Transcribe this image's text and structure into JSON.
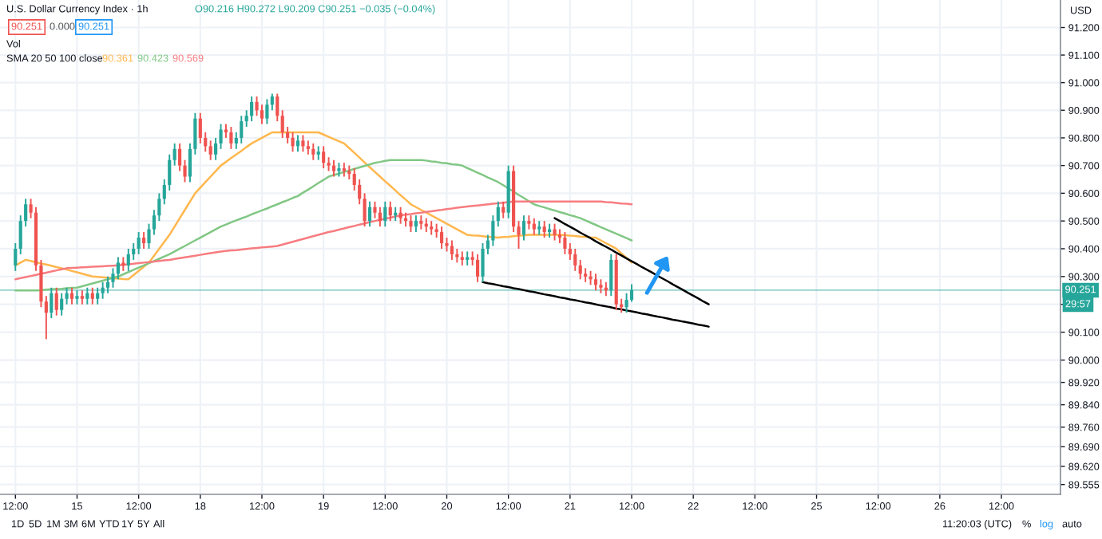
{
  "chart_data": {
    "type": "candlestick",
    "title": "U.S. Dollar Currency Index · 1h",
    "categories": [
      "12:00",
      null,
      null,
      null,
      null,
      null,
      null,
      null,
      null,
      null,
      null,
      null,
      "15",
      null,
      null,
      null,
      null,
      null,
      null,
      null,
      null,
      null,
      null,
      null,
      "12:00",
      null,
      null,
      null,
      null,
      null,
      null,
      null,
      null,
      null,
      null,
      null,
      "18",
      null,
      null,
      null,
      null,
      null,
      null,
      null,
      null,
      null,
      null,
      null,
      "12:00",
      null,
      null,
      null,
      null,
      null,
      null,
      null,
      null,
      null,
      null,
      null,
      "19",
      null,
      null,
      null,
      null,
      null,
      null,
      null,
      null,
      null,
      null,
      null,
      "12:00",
      null,
      null,
      null,
      null,
      null,
      null,
      null,
      null,
      null,
      null,
      null,
      "20",
      null,
      null,
      null,
      null,
      null,
      null,
      null,
      null,
      null,
      null,
      null,
      "12:00",
      null,
      null,
      null,
      null,
      null,
      null,
      null,
      null,
      null,
      null,
      null,
      "21",
      null,
      null,
      null,
      null,
      null,
      null,
      null,
      null,
      null,
      null,
      null,
      "12:00",
      null,
      null,
      null,
      null,
      null,
      null,
      null,
      null,
      null,
      null,
      null,
      "22",
      null,
      null,
      null,
      null,
      null,
      null,
      null,
      null,
      null,
      null,
      null,
      "12:00",
      null,
      null,
      null,
      null,
      null,
      null,
      null,
      null,
      null,
      null,
      null,
      "25",
      null,
      null,
      null,
      null,
      null,
      null,
      null,
      null,
      null,
      null,
      null,
      "12:00",
      null,
      null,
      null,
      null,
      null,
      null,
      null,
      null,
      null,
      null,
      null,
      "26",
      null,
      null,
      null,
      null,
      null,
      null,
      null,
      null,
      null,
      null,
      null,
      "12:00",
      null,
      null,
      null,
      null,
      null,
      null,
      null,
      null,
      null,
      null,
      null
    ],
    "ohlc": [
      [
        90.34,
        90.42,
        90.32,
        90.4
      ],
      [
        90.4,
        90.52,
        90.38,
        90.5
      ],
      [
        90.5,
        90.58,
        90.48,
        90.56
      ],
      [
        90.56,
        90.58,
        90.51,
        90.53
      ],
      [
        90.53,
        90.55,
        90.32,
        90.34
      ],
      [
        90.34,
        90.36,
        90.19,
        90.21
      ],
      [
        90.21,
        90.23,
        90.075,
        90.17
      ],
      [
        90.17,
        90.26,
        90.15,
        90.24
      ],
      [
        90.24,
        90.26,
        90.16,
        90.18
      ],
      [
        90.18,
        90.24,
        90.16,
        90.22
      ],
      [
        90.22,
        90.26,
        90.2,
        90.24
      ],
      [
        90.24,
        90.26,
        90.2,
        90.22
      ],
      [
        90.22,
        90.25,
        90.2,
        90.23
      ],
      [
        90.23,
        90.25,
        90.2,
        90.22
      ],
      [
        90.22,
        90.26,
        90.2,
        90.24
      ],
      [
        90.24,
        90.26,
        90.2,
        90.22
      ],
      [
        90.22,
        90.26,
        90.2,
        90.24
      ],
      [
        90.24,
        90.28,
        90.22,
        90.26
      ],
      [
        90.26,
        90.3,
        90.24,
        90.28
      ],
      [
        90.28,
        90.33,
        90.26,
        90.31
      ],
      [
        90.31,
        90.37,
        90.29,
        90.35
      ],
      [
        90.35,
        90.37,
        90.32,
        90.34
      ],
      [
        90.34,
        90.4,
        90.32,
        90.38
      ],
      [
        90.38,
        90.42,
        90.36,
        90.4
      ],
      [
        90.4,
        90.46,
        90.38,
        90.44
      ],
      [
        90.44,
        90.46,
        90.4,
        90.42
      ],
      [
        90.42,
        90.49,
        90.4,
        90.47
      ],
      [
        90.47,
        90.54,
        90.45,
        90.52
      ],
      [
        90.52,
        90.6,
        90.5,
        90.58
      ],
      [
        90.58,
        90.65,
        90.56,
        90.63
      ],
      [
        90.63,
        90.74,
        90.61,
        90.72
      ],
      [
        90.72,
        90.78,
        90.7,
        90.76
      ],
      [
        90.76,
        90.78,
        90.68,
        90.7
      ],
      [
        90.7,
        90.72,
        90.64,
        90.66
      ],
      [
        90.66,
        90.78,
        90.64,
        90.76
      ],
      [
        90.76,
        90.89,
        90.74,
        90.87
      ],
      [
        90.87,
        90.89,
        90.78,
        90.8
      ],
      [
        90.8,
        90.82,
        90.75,
        90.77
      ],
      [
        90.77,
        90.79,
        90.72,
        90.74
      ],
      [
        90.74,
        90.8,
        90.72,
        90.78
      ],
      [
        90.78,
        90.85,
        90.76,
        90.83
      ],
      [
        90.83,
        90.85,
        90.8,
        90.82
      ],
      [
        90.82,
        90.84,
        90.76,
        90.78
      ],
      [
        90.78,
        90.82,
        90.76,
        90.8
      ],
      [
        90.8,
        90.88,
        90.78,
        90.86
      ],
      [
        90.86,
        90.9,
        90.84,
        90.88
      ],
      [
        90.88,
        90.95,
        90.86,
        90.93
      ],
      [
        90.93,
        90.95,
        90.88,
        90.9
      ],
      [
        90.9,
        90.92,
        90.85,
        90.87
      ],
      [
        90.87,
        90.94,
        90.85,
        90.92
      ],
      [
        90.92,
        90.96,
        90.9,
        90.95
      ],
      [
        90.95,
        90.96,
        90.86,
        90.88
      ],
      [
        90.88,
        90.9,
        90.8,
        90.82
      ],
      [
        90.82,
        90.84,
        90.78,
        90.8
      ],
      [
        90.8,
        90.82,
        90.75,
        90.77
      ],
      [
        90.77,
        90.81,
        90.75,
        90.79
      ],
      [
        90.79,
        90.81,
        90.75,
        90.77
      ],
      [
        90.77,
        90.79,
        90.74,
        90.76
      ],
      [
        90.76,
        90.78,
        90.72,
        90.74
      ],
      [
        90.74,
        90.77,
        90.72,
        90.75
      ],
      [
        90.75,
        90.77,
        90.69,
        90.71
      ],
      [
        90.71,
        90.73,
        90.68,
        90.7
      ],
      [
        90.7,
        90.72,
        90.66,
        90.68
      ],
      [
        90.68,
        90.71,
        90.66,
        90.69
      ],
      [
        90.69,
        90.71,
        90.66,
        90.68
      ],
      [
        90.68,
        90.7,
        90.65,
        90.67
      ],
      [
        90.67,
        90.69,
        90.61,
        90.63
      ],
      [
        90.63,
        90.65,
        90.56,
        90.58
      ],
      [
        90.58,
        90.6,
        90.48,
        90.5
      ],
      [
        90.5,
        90.57,
        90.48,
        90.55
      ],
      [
        90.55,
        90.57,
        90.51,
        90.53
      ],
      [
        90.53,
        90.55,
        90.48,
        90.5
      ],
      [
        90.5,
        90.57,
        90.48,
        90.55
      ],
      [
        90.55,
        90.57,
        90.5,
        90.52
      ],
      [
        90.52,
        90.55,
        90.5,
        90.53
      ],
      [
        90.53,
        90.55,
        90.49,
        90.51
      ],
      [
        90.51,
        90.53,
        90.48,
        90.5
      ],
      [
        90.5,
        90.52,
        90.46,
        90.48
      ],
      [
        90.48,
        90.52,
        90.46,
        90.5
      ],
      [
        90.5,
        90.52,
        90.47,
        90.49
      ],
      [
        90.49,
        90.51,
        90.46,
        90.48
      ],
      [
        90.48,
        90.5,
        90.45,
        90.47
      ],
      [
        90.47,
        90.49,
        90.44,
        90.46
      ],
      [
        90.46,
        90.48,
        90.4,
        90.42
      ],
      [
        90.42,
        90.44,
        90.39,
        90.41
      ],
      [
        90.41,
        90.43,
        90.36,
        90.38
      ],
      [
        90.38,
        90.4,
        90.35,
        90.37
      ],
      [
        90.37,
        90.39,
        90.34,
        90.36
      ],
      [
        90.36,
        90.39,
        90.34,
        90.37
      ],
      [
        90.37,
        90.39,
        90.34,
        90.36
      ],
      [
        90.36,
        90.38,
        90.28,
        90.3
      ],
      [
        90.3,
        90.42,
        90.28,
        90.4
      ],
      [
        90.4,
        90.45,
        90.38,
        90.43
      ],
      [
        90.43,
        90.52,
        90.41,
        90.5
      ],
      [
        90.5,
        90.57,
        90.48,
        90.55
      ],
      [
        90.55,
        90.57,
        90.51,
        90.53
      ],
      [
        90.53,
        90.7,
        90.51,
        90.68
      ],
      [
        90.68,
        90.7,
        90.46,
        90.48
      ],
      [
        90.48,
        90.5,
        90.4,
        90.45
      ],
      [
        90.45,
        90.52,
        90.43,
        90.5
      ],
      [
        90.5,
        90.52,
        90.47,
        90.49
      ],
      [
        90.49,
        90.51,
        90.45,
        90.47
      ],
      [
        90.47,
        90.5,
        90.45,
        90.48
      ],
      [
        90.48,
        90.5,
        90.44,
        90.46
      ],
      [
        90.46,
        90.49,
        90.44,
        90.47
      ],
      [
        90.47,
        90.49,
        90.43,
        90.45
      ],
      [
        90.45,
        90.47,
        90.42,
        90.44
      ],
      [
        90.44,
        90.46,
        90.38,
        90.4
      ],
      [
        90.4,
        90.42,
        90.36,
        90.38
      ],
      [
        90.38,
        90.4,
        90.32,
        90.34
      ],
      [
        90.34,
        90.36,
        90.29,
        90.31
      ],
      [
        90.31,
        90.33,
        90.28,
        90.3
      ],
      [
        90.3,
        90.32,
        90.27,
        90.29
      ],
      [
        90.29,
        90.31,
        90.25,
        90.27
      ],
      [
        90.27,
        90.29,
        90.24,
        90.26
      ],
      [
        90.26,
        90.28,
        90.23,
        90.25
      ],
      [
        90.25,
        90.38,
        90.23,
        90.36
      ],
      [
        90.36,
        90.38,
        90.18,
        90.2
      ],
      [
        90.2,
        90.22,
        90.17,
        90.19
      ],
      [
        90.19,
        90.24,
        90.17,
        90.216
      ],
      [
        90.216,
        90.272,
        90.209,
        90.251
      ],
      null,
      null,
      null,
      null,
      null,
      null,
      null,
      null,
      null,
      null,
      null,
      null,
      null,
      null,
      null,
      null,
      null,
      null,
      null,
      null,
      null,
      null,
      null,
      null,
      null,
      null,
      null,
      null,
      null,
      null,
      null,
      null,
      null,
      null,
      null,
      null,
      null,
      null,
      null,
      null,
      null,
      null,
      null,
      null,
      null,
      null,
      null,
      null,
      null,
      null,
      null,
      null,
      null,
      null,
      null,
      null,
      null,
      null,
      null,
      null,
      null,
      null,
      null,
      null,
      null,
      null,
      null,
      null,
      null,
      null,
      null,
      null,
      null,
      null,
      null,
      null,
      null,
      null,
      null,
      null,
      null,
      null,
      null
    ],
    "colors": [
      "#26a69a",
      "#26a69a",
      "#26a69a",
      "#ef5350",
      "#ef5350",
      "#ef5350",
      "#ef5350",
      "#26a69a",
      "#ef5350",
      "#26a69a",
      "#26a69a",
      "#ef5350",
      "#26a69a",
      "#ef5350",
      "#26a69a",
      "#ef5350",
      "#26a69a",
      "#26a69a",
      "#26a69a",
      "#26a69a",
      "#26a69a",
      "#ef5350",
      "#26a69a",
      "#26a69a",
      "#26a69a",
      "#ef5350",
      "#26a69a",
      "#26a69a",
      "#26a69a",
      "#26a69a",
      "#26a69a",
      "#26a69a",
      "#ef5350",
      "#ef5350",
      "#26a69a",
      "#26a69a",
      "#ef5350",
      "#ef5350",
      "#ef5350",
      "#26a69a",
      "#26a69a",
      "#ef5350",
      "#ef5350",
      "#26a69a",
      "#26a69a",
      "#26a69a",
      "#26a69a",
      "#ef5350",
      "#ef5350",
      "#26a69a",
      "#26a69a",
      "#ef5350",
      "#ef5350",
      "#ef5350",
      "#ef5350",
      "#26a69a",
      "#ef5350",
      "#ef5350",
      "#ef5350",
      "#26a69a",
      "#ef5350",
      "#ef5350",
      "#ef5350",
      "#26a69a",
      "#ef5350",
      "#ef5350",
      "#ef5350",
      "#ef5350",
      "#ef5350",
      "#26a69a",
      "#ef5350",
      "#ef5350",
      "#26a69a",
      "#ef5350",
      "#26a69a",
      "#ef5350",
      "#ef5350",
      "#ef5350",
      "#26a69a",
      "#ef5350",
      "#ef5350",
      "#ef5350",
      "#ef5350",
      "#ef5350",
      "#ef5350",
      "#ef5350",
      "#ef5350",
      "#ef5350",
      "#26a69a",
      "#ef5350",
      "#ef5350",
      "#26a69a",
      "#26a69a",
      "#26a69a",
      "#26a69a",
      "#ef5350",
      "#26a69a",
      "#ef5350",
      "#ef5350",
      "#26a69a",
      "#ef5350",
      "#ef5350",
      "#26a69a",
      "#ef5350",
      "#26a69a",
      "#ef5350",
      "#ef5350",
      "#ef5350",
      "#ef5350",
      "#ef5350",
      "#ef5350",
      "#ef5350",
      "#ef5350",
      "#ef5350",
      "#ef5350",
      "#ef5350",
      "#26a69a",
      "#ef5350",
      "#ef5350",
      "#26a69a",
      "#26a69a",
      null,
      null,
      null,
      null,
      null,
      null,
      null,
      null,
      null,
      null,
      null,
      null,
      null,
      null,
      null,
      null,
      null,
      null,
      null,
      null,
      null,
      null,
      null,
      null,
      null,
      null,
      null,
      null,
      null,
      null,
      null,
      null,
      null,
      null,
      null,
      null,
      null,
      null,
      null,
      null,
      null,
      null,
      null,
      null,
      null,
      null,
      null,
      null,
      null,
      null,
      null,
      null,
      null,
      null,
      null,
      null,
      null,
      null,
      null,
      null,
      null,
      null,
      null,
      null,
      null,
      null,
      null,
      null,
      null,
      null,
      null,
      null,
      null,
      null,
      null,
      null,
      null,
      null,
      null,
      null,
      null,
      null,
      null
    ],
    "series": [
      {
        "type": "line",
        "name": "90.361",
        "color": "#ffb74d",
        "values": [
          90.34,
          90.35,
          90.36,
          90.356,
          90.351,
          90.347,
          90.343,
          90.339,
          90.334,
          90.33,
          90.325,
          90.32,
          90.315,
          90.31,
          90.305,
          90.3,
          90.299,
          90.297,
          90.296,
          90.294,
          90.293,
          90.291,
          90.29,
          90.305,
          90.32,
          90.335,
          90.35,
          90.375,
          90.4,
          90.425,
          90.45,
          90.48,
          90.51,
          90.54,
          90.57,
          90.6,
          90.62,
          90.64,
          90.66,
          90.68,
          90.7,
          90.713,
          90.727,
          90.74,
          90.753,
          90.767,
          90.78,
          90.79,
          90.8,
          90.81,
          90.82,
          90.82,
          90.82,
          90.82,
          90.82,
          90.82,
          90.82,
          90.82,
          90.82,
          90.82,
          90.812,
          90.804,
          90.796,
          90.788,
          90.78,
          90.763,
          90.746,
          90.729,
          90.711,
          90.694,
          90.677,
          90.66,
          90.643,
          90.627,
          90.61,
          90.593,
          90.577,
          90.56,
          90.55,
          90.54,
          90.53,
          90.52,
          90.51,
          90.5,
          90.49,
          90.48,
          90.47,
          90.46,
          90.45,
          90.448,
          90.447,
          90.445,
          90.443,
          90.442,
          90.44,
          90.442,
          90.443,
          90.445,
          90.447,
          90.448,
          90.45,
          90.45,
          90.45,
          90.45,
          90.45,
          90.45,
          90.45,
          90.449,
          90.447,
          90.446,
          90.444,
          90.443,
          90.441,
          90.44,
          90.43,
          90.42,
          90.41,
          90.4,
          90.383,
          90.367,
          90.35,
          null,
          null,
          null,
          null,
          null,
          null,
          null,
          null,
          null,
          null,
          null,
          null,
          null,
          null,
          null,
          null,
          null,
          null,
          null,
          null,
          null,
          null,
          null,
          null,
          null,
          null,
          null,
          null,
          null,
          null,
          null,
          null,
          null,
          null,
          null,
          null,
          null,
          null,
          null,
          null,
          null,
          null,
          null,
          null,
          null,
          null,
          null,
          null,
          null,
          null,
          null,
          null,
          null,
          null,
          null,
          null,
          null,
          null,
          null,
          null,
          null,
          null,
          null,
          null,
          null,
          null,
          null,
          null,
          null,
          null,
          null,
          null,
          null,
          null,
          null,
          null,
          null,
          null,
          null,
          null,
          null,
          null,
          null
        ]
      },
      {
        "type": "line",
        "name": "90.423",
        "color": "#81c784",
        "values": [
          90.25,
          90.25,
          90.25,
          90.25,
          90.25,
          90.251,
          90.253,
          90.254,
          90.255,
          90.256,
          90.258,
          90.259,
          90.26,
          90.265,
          90.27,
          90.275,
          90.28,
          90.285,
          90.29,
          90.295,
          90.3,
          90.308,
          90.316,
          90.324,
          90.332,
          90.34,
          90.348,
          90.356,
          90.364,
          90.372,
          90.38,
          90.39,
          90.4,
          90.41,
          90.42,
          90.43,
          90.44,
          90.45,
          90.46,
          90.47,
          90.48,
          90.487,
          90.495,
          90.502,
          90.509,
          90.516,
          90.524,
          90.531,
          90.538,
          90.545,
          90.553,
          90.56,
          90.568,
          90.575,
          90.583,
          90.59,
          90.602,
          90.613,
          90.625,
          90.637,
          90.648,
          90.66,
          90.666,
          90.671,
          90.677,
          90.682,
          90.688,
          90.693,
          90.699,
          90.704,
          90.71,
          90.713,
          90.717,
          90.72,
          90.72,
          90.72,
          90.72,
          90.72,
          90.72,
          90.72,
          90.718,
          90.715,
          90.713,
          90.71,
          90.708,
          90.705,
          90.703,
          90.7,
          90.691,
          90.683,
          90.674,
          90.666,
          90.657,
          90.649,
          90.64,
          90.629,
          90.617,
          90.606,
          90.594,
          90.583,
          90.571,
          90.56,
          90.554,
          90.549,
          90.543,
          90.538,
          90.532,
          90.527,
          90.521,
          90.516,
          90.51,
          90.502,
          90.494,
          90.486,
          90.478,
          90.47,
          90.462,
          90.454,
          90.446,
          90.438,
          90.43,
          null,
          null,
          null,
          null,
          null,
          null,
          null,
          null,
          null,
          null,
          null,
          null,
          null,
          null,
          null,
          null,
          null,
          null,
          null,
          null,
          null,
          null,
          null,
          null,
          null,
          null,
          null,
          null,
          null,
          null,
          null,
          null,
          null,
          null,
          null,
          null,
          null,
          null,
          null,
          null,
          null,
          null,
          null,
          null,
          null,
          null,
          null,
          null,
          null,
          null,
          null,
          null,
          null,
          null,
          null,
          null,
          null,
          null,
          null,
          null,
          null,
          null,
          null,
          null,
          null,
          null,
          null,
          null,
          null,
          null,
          null,
          null,
          null,
          null,
          null,
          null,
          null,
          null,
          null,
          null,
          null,
          null,
          null
        ]
      },
      {
        "type": "line",
        "name": "90.569",
        "color": "#f77c80",
        "values": [
          90.29,
          90.294,
          90.298,
          90.302,
          90.306,
          90.31,
          90.314,
          90.318,
          90.322,
          90.326,
          90.33,
          90.331,
          90.332,
          90.333,
          90.334,
          90.335,
          90.336,
          90.337,
          90.338,
          90.339,
          90.34,
          90.342,
          90.344,
          90.346,
          90.348,
          90.35,
          90.352,
          90.354,
          90.356,
          90.358,
          90.36,
          90.363,
          90.366,
          90.369,
          90.372,
          90.375,
          90.378,
          90.381,
          90.384,
          90.387,
          90.39,
          90.392,
          90.394,
          90.395,
          90.397,
          90.399,
          90.401,
          90.403,
          90.405,
          90.406,
          90.408,
          90.41,
          90.415,
          90.42,
          90.425,
          90.43,
          90.435,
          90.44,
          90.445,
          90.45,
          90.455,
          90.46,
          90.464,
          90.469,
          90.473,
          90.478,
          90.482,
          90.487,
          90.491,
          90.496,
          90.5,
          90.504,
          90.508,
          90.512,
          90.516,
          90.52,
          90.523,
          90.525,
          90.528,
          90.53,
          90.533,
          90.535,
          90.538,
          90.54,
          90.543,
          90.545,
          90.548,
          90.55,
          90.552,
          90.554,
          90.556,
          90.558,
          90.56,
          90.562,
          90.564,
          90.566,
          90.568,
          90.57,
          90.57,
          90.57,
          90.57,
          90.57,
          90.57,
          90.57,
          90.57,
          90.57,
          90.57,
          90.57,
          90.57,
          90.57,
          90.57,
          90.57,
          90.57,
          90.57,
          90.57,
          90.568,
          90.567,
          90.565,
          90.563,
          90.562,
          90.56,
          null,
          null,
          null,
          null,
          null,
          null,
          null,
          null,
          null,
          null,
          null,
          null,
          null,
          null,
          null,
          null,
          null,
          null,
          null,
          null,
          null,
          null,
          null,
          null,
          null,
          null,
          null,
          null,
          null,
          null,
          null,
          null,
          null,
          null,
          null,
          null,
          null,
          null,
          null,
          null,
          null,
          null,
          null,
          null,
          null,
          null,
          null,
          null,
          null,
          null,
          null,
          null,
          null,
          null,
          null,
          null,
          null,
          null,
          null,
          null,
          null,
          null,
          null,
          null,
          null,
          null,
          null,
          null,
          null,
          null,
          null,
          null,
          null,
          null,
          null,
          null,
          null,
          null,
          null,
          null,
          null,
          null,
          null
        ]
      },
      {
        "type": "line",
        "color": "#000000",
        "values": [
          null,
          null,
          null,
          null,
          null,
          null,
          null,
          null,
          null,
          null,
          null,
          null,
          null,
          null,
          null,
          null,
          null,
          null,
          null,
          null,
          null,
          null,
          null,
          null,
          null,
          null,
          null,
          null,
          null,
          null,
          null,
          null,
          null,
          null,
          null,
          null,
          null,
          null,
          null,
          null,
          null,
          null,
          null,
          null,
          null,
          null,
          null,
          null,
          null,
          null,
          null,
          null,
          null,
          null,
          null,
          null,
          null,
          null,
          null,
          null,
          null,
          null,
          null,
          null,
          null,
          null,
          null,
          null,
          null,
          null,
          null,
          null,
          null,
          null,
          null,
          null,
          null,
          null,
          null,
          null,
          null,
          null,
          null,
          null,
          null,
          null,
          null,
          null,
          null,
          null,
          null,
          null,
          null,
          null,
          null,
          null,
          null,
          null,
          null,
          null,
          null,
          null,
          null,
          null,
          null,
          90.51,
          90.5,
          90.489,
          90.479,
          90.469,
          90.458,
          90.448,
          90.438,
          90.427,
          90.417,
          90.407,
          90.397,
          90.386,
          90.376,
          90.365,
          90.355,
          90.345,
          90.334,
          90.324,
          90.314,
          90.303,
          90.293,
          90.283,
          90.272,
          90.262,
          90.252,
          90.241,
          90.231,
          90.221,
          90.21,
          90.2,
          null,
          null,
          null,
          null,
          null,
          null,
          null,
          null,
          null,
          null,
          null,
          null,
          null,
          null,
          null,
          null,
          null,
          null,
          null,
          null,
          null,
          null,
          null,
          null,
          null,
          null,
          null,
          null,
          null,
          null,
          null,
          null,
          null,
          null,
          null,
          null,
          null,
          null,
          null,
          null,
          null,
          null,
          null,
          null,
          null,
          null,
          null,
          null,
          null,
          null,
          null,
          null,
          null,
          null,
          null,
          null,
          null,
          null,
          null,
          null,
          null,
          null,
          null,
          null,
          null,
          null,
          null,
          null
        ]
      },
      {
        "type": "line",
        "color": "#000000",
        "values": [
          null,
          null,
          null,
          null,
          null,
          null,
          null,
          null,
          null,
          null,
          null,
          null,
          null,
          null,
          null,
          null,
          null,
          null,
          null,
          null,
          null,
          null,
          null,
          null,
          null,
          null,
          null,
          null,
          null,
          null,
          null,
          null,
          null,
          null,
          null,
          null,
          null,
          null,
          null,
          null,
          null,
          null,
          null,
          null,
          null,
          null,
          null,
          null,
          null,
          null,
          null,
          null,
          null,
          null,
          null,
          null,
          null,
          null,
          null,
          null,
          null,
          null,
          null,
          null,
          null,
          null,
          null,
          null,
          null,
          null,
          null,
          null,
          null,
          null,
          null,
          null,
          null,
          null,
          null,
          null,
          null,
          null,
          null,
          null,
          null,
          null,
          null,
          null,
          null,
          null,
          null,
          90.28,
          90.276,
          90.273,
          90.269,
          90.265,
          90.262,
          90.258,
          90.255,
          90.251,
          90.247,
          90.244,
          90.24,
          90.236,
          90.233,
          90.229,
          90.225,
          90.222,
          90.218,
          90.215,
          90.211,
          90.207,
          90.204,
          90.2,
          90.196,
          90.193,
          90.189,
          90.185,
          90.182,
          90.178,
          90.175,
          90.171,
          90.167,
          90.164,
          90.16,
          90.156,
          90.153,
          90.149,
          90.145,
          90.142,
          90.138,
          90.135,
          90.131,
          90.127,
          90.124,
          90.12,
          null,
          null,
          null,
          null,
          null,
          null,
          null,
          null,
          null,
          null,
          null,
          null,
          null,
          null,
          null,
          null,
          null,
          null,
          null,
          null,
          null,
          null,
          null,
          null,
          null,
          null,
          null,
          null,
          null,
          null,
          null,
          null,
          null,
          null,
          null,
          null,
          null,
          null,
          null,
          null,
          null,
          null,
          null,
          null,
          null,
          null,
          null,
          null,
          null,
          null,
          null,
          null,
          null,
          null,
          null,
          null,
          null,
          null,
          null,
          null,
          null,
          null,
          null,
          null,
          null,
          null,
          null,
          null
        ]
      }
    ],
    "ref_lines": [
      {
        "axis": "y",
        "value": 90.251,
        "label": "90.251",
        "color": "#26a69a"
      }
    ],
    "annotations": [
      "O90.216 H90.272 L90.209 C90.251 −0.035 (−0.04%)",
      "90.251",
      "0.000",
      "90.251",
      "Vol",
      "SMA 20 50 100 close",
      "29:57",
      "USD",
      "1D",
      "5D",
      "1M",
      "3M",
      "6M",
      "YTD",
      "1Y",
      "5Y",
      "All",
      "11:20:03 (UTC)",
      "%",
      "log",
      "auto"
    ],
    "ylim": [
      89.52,
      91.3
    ],
    "yticks": [
      {
        "value": 91.2,
        "label": "91.200"
      },
      {
        "value": 91.1,
        "label": "91.100"
      },
      {
        "value": 91.0,
        "label": "91.000"
      },
      {
        "value": 90.9,
        "label": "90.900"
      },
      {
        "value": 90.8,
        "label": "90.800"
      },
      {
        "value": 90.7,
        "label": "90.700"
      },
      {
        "value": 90.6,
        "label": "90.600"
      },
      {
        "value": 90.5,
        "label": "90.500"
      },
      {
        "value": 90.4,
        "label": "90.400"
      },
      {
        "value": 90.3,
        "label": "90.300"
      },
      {
        "value": 90.2,
        "label": null
      },
      {
        "value": 90.1,
        "label": "90.100"
      },
      {
        "value": 90.0,
        "label": "90.000"
      },
      {
        "value": 89.92,
        "label": "89.920"
      },
      {
        "value": 89.84,
        "label": "89.840"
      },
      {
        "value": 89.76,
        "label": "89.760"
      },
      {
        "value": 89.69,
        "label": "89.690"
      },
      {
        "value": 89.62,
        "label": "89.620"
      },
      {
        "value": 89.555,
        "label": "89.555"
      }
    ],
    "log": true,
    "grid": true,
    "line_style": "solid"
  }
}
